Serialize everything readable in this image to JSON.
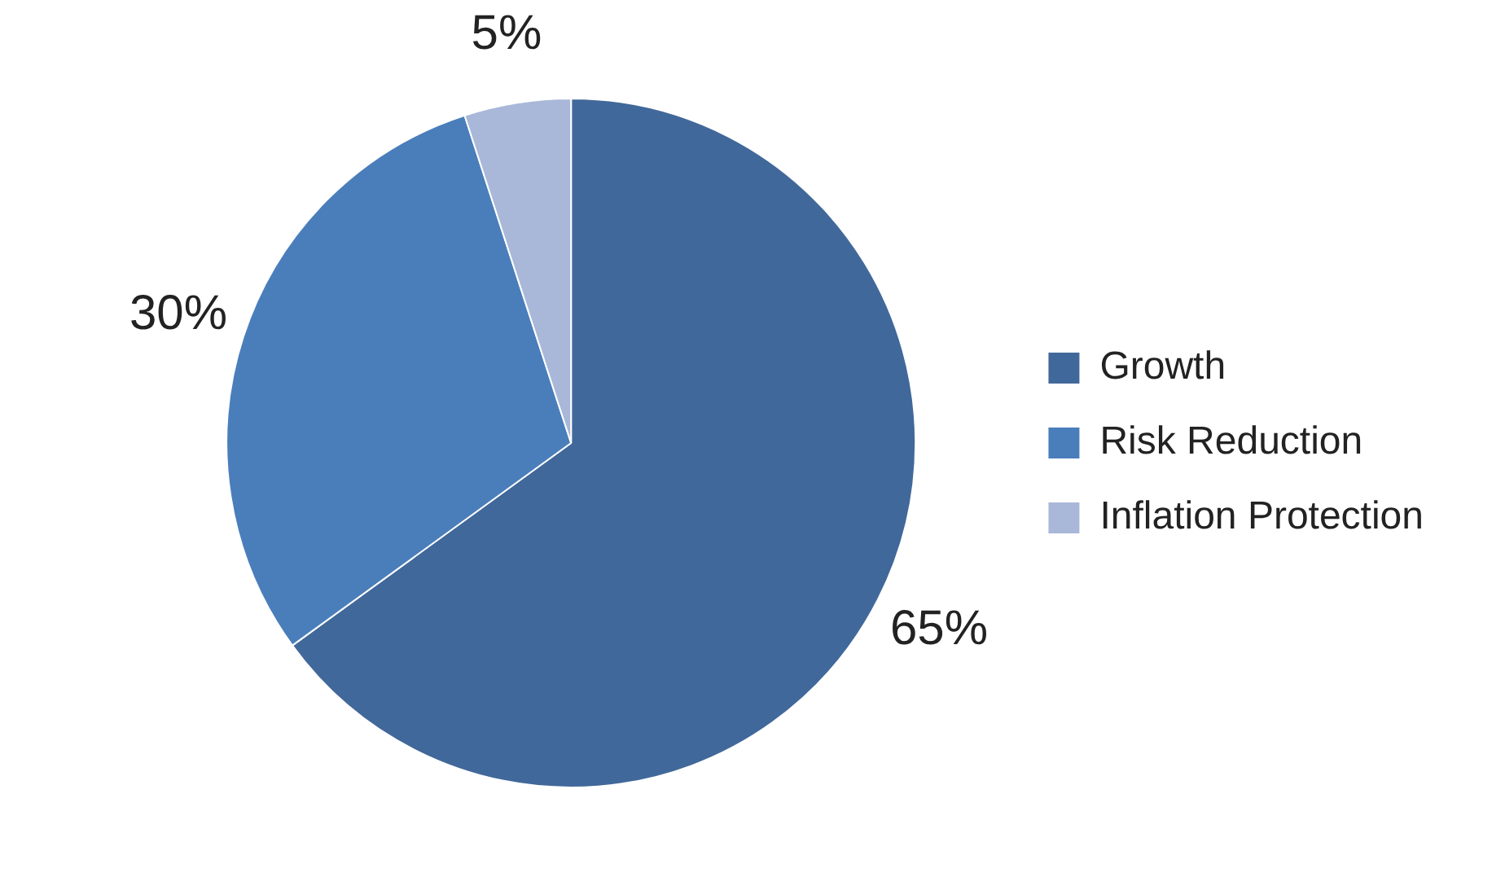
{
  "chart_data": {
    "type": "pie",
    "categories": [
      "Growth",
      "Risk Reduction",
      "Inflation Protection"
    ],
    "values": [
      65,
      30,
      5
    ],
    "colors": [
      "#41689a",
      "#4a7ebb",
      "#a9b8d8"
    ],
    "value_labels": [
      "65%",
      "30%",
      "5%"
    ],
    "legend": "right"
  }
}
